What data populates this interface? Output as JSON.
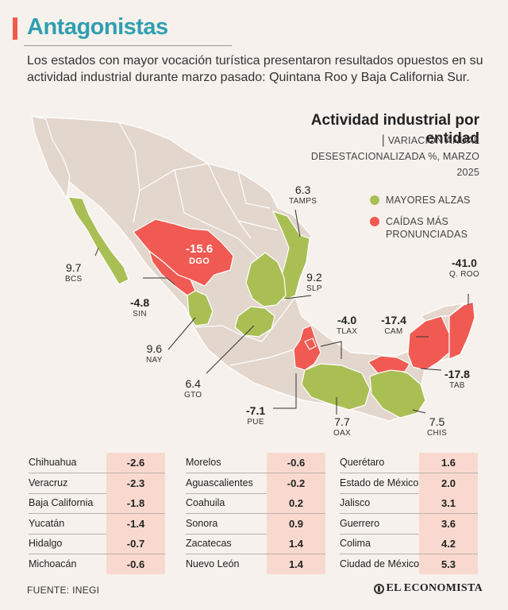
{
  "colors": {
    "accent_title": "#f15a4c",
    "title_text": "#2f9fb0",
    "increase": "#a9bf54",
    "decrease": "#f05a52",
    "neutral_state": "#e3d6cd",
    "table_value_bg": "#f9d9cf"
  },
  "header": {
    "title": "Antagonistas",
    "intro": "Los estados con mayor vocación turística presentaron resultados opuestos en su actividad industrial durante marzo pasado: Quintana Roo y Baja California Sur."
  },
  "panel": {
    "title": "Actividad industrial por entidad",
    "subtitle_pipe": "|",
    "subtitle": "VARIACIÓN ANUAL DESESTACIONALIZADA %, MARZO 2025"
  },
  "legend": [
    {
      "label": "MAYORES ALZAS",
      "color": "#a9bf54"
    },
    {
      "label": "CAÍDAS MÁS PRONUNCIADAS",
      "color": "#f05a52"
    }
  ],
  "map_labels": [
    {
      "code": "TAMPS",
      "value": "6.3"
    },
    {
      "code": "BCS",
      "value": "9.7"
    },
    {
      "code": "DGO",
      "value": "-15.6"
    },
    {
      "code": "SLP",
      "value": "9.2"
    },
    {
      "code": "Q. ROO",
      "value": "-41.0"
    },
    {
      "code": "SIN",
      "value": "-4.8"
    },
    {
      "code": "TLAX",
      "value": "-4.0"
    },
    {
      "code": "CAM",
      "value": "-17.4"
    },
    {
      "code": "NAY",
      "value": "9.6"
    },
    {
      "code": "TAB",
      "value": "-17.8"
    },
    {
      "code": "GTO",
      "value": "6.4"
    },
    {
      "code": "PUE",
      "value": "-7.1"
    },
    {
      "code": "OAX",
      "value": "7.7"
    },
    {
      "code": "CHIS",
      "value": "7.5"
    }
  ],
  "table": {
    "columns": [
      [
        {
          "state": "Chihuahua",
          "value": "-2.6"
        },
        {
          "state": "Veracruz",
          "value": "-2.3"
        },
        {
          "state": "Baja California",
          "value": "-1.8"
        },
        {
          "state": "Yucatán",
          "value": "-1.4"
        },
        {
          "state": "Hidalgo",
          "value": "-0.7"
        },
        {
          "state": "Michoacán",
          "value": "-0.6"
        }
      ],
      [
        {
          "state": "Morelos",
          "value": "-0.6"
        },
        {
          "state": "Aguascalientes",
          "value": "-0.2"
        },
        {
          "state": "Coahuila",
          "value": "0.2"
        },
        {
          "state": "Sonora",
          "value": "0.9"
        },
        {
          "state": "Zacatecas",
          "value": "1.4"
        },
        {
          "state": "Nuevo León",
          "value": "1.4"
        }
      ],
      [
        {
          "state": "Querétaro",
          "value": "1.6"
        },
        {
          "state": "Estado de México",
          "value": "2.0"
        },
        {
          "state": "Jalisco",
          "value": "3.1"
        },
        {
          "state": "Guerrero",
          "value": "3.6"
        },
        {
          "state": "Colima",
          "value": "4.2"
        },
        {
          "state": "Ciudad de México",
          "value": "5.3"
        }
      ]
    ]
  },
  "footer": {
    "source": "FUENTE: INEGI",
    "brand": "EL ECONOMISTA"
  }
}
